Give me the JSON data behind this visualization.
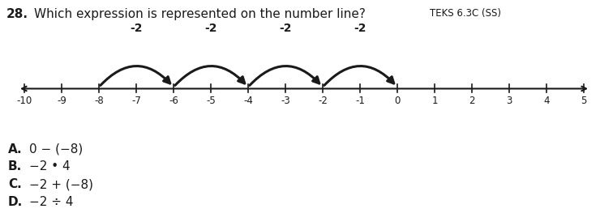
{
  "title_num": "28.",
  "title_question": "Which expression is represented on the number line?",
  "title_teks": "TEKS 6.3C (SS)",
  "number_line_min": -10,
  "number_line_max": 5,
  "arc_starts": [
    -8,
    -6,
    -4,
    -2
  ],
  "arc_ends": [
    -6,
    -4,
    -2,
    0
  ],
  "arc_labels": [
    "-2",
    "-2",
    "-2",
    "-2"
  ],
  "arc_color": "#1a1a1a",
  "answers": [
    [
      "A.",
      "0 − (−8)"
    ],
    [
      "B.",
      "−2 • 4"
    ],
    [
      "C.",
      "−2 + (−8)"
    ],
    [
      "D.",
      "−2 ÷ 4"
    ]
  ],
  "background_color": "#ffffff",
  "text_color": "#1a1a1a",
  "axis_color": "#1a1a1a"
}
